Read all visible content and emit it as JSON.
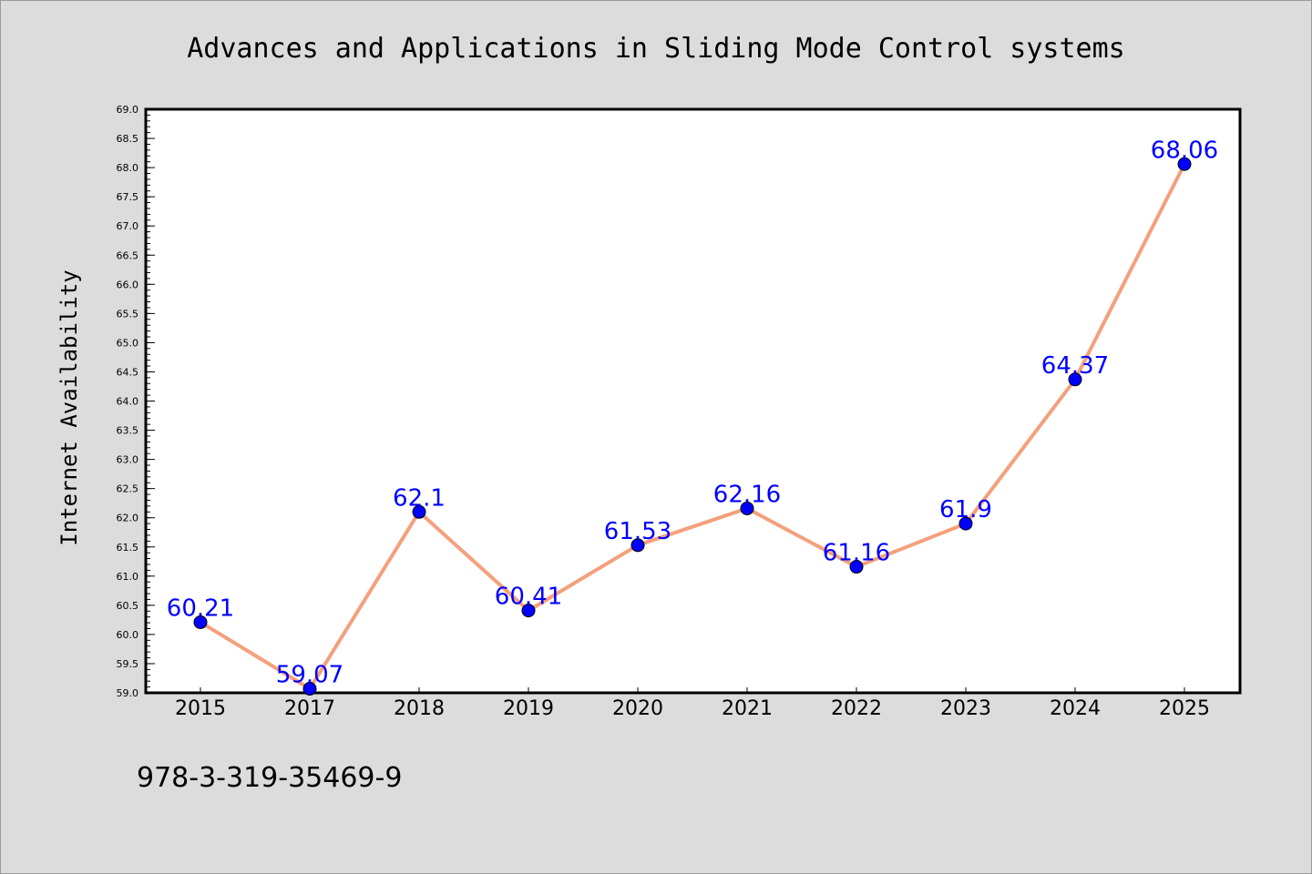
{
  "footer_text": "978-3-319-35469-9",
  "colors": {
    "background": "#dcdcdc",
    "plot_background": "#ffffff",
    "line": "#f4a07c",
    "marker": "#0000ff",
    "data_label": "#0000ff"
  },
  "chart_data": {
    "type": "line",
    "title": "Advances and Applications in Sliding Mode Control systems",
    "xlabel": "",
    "ylabel": "Internet Availability",
    "categories": [
      "2015",
      "2017",
      "2018",
      "2019",
      "2020",
      "2021",
      "2022",
      "2023",
      "2024",
      "2025"
    ],
    "series": [
      {
        "values": [
          60.21,
          59.07,
          62.1,
          60.41,
          61.53,
          62.16,
          61.16,
          61.9,
          64.37,
          68.06
        ],
        "labels": [
          "60.21",
          "59.07",
          "62.1",
          "60.41",
          "61.53",
          "62.16",
          "61.16",
          "61.9",
          "64.37",
          "68.06"
        ]
      }
    ],
    "ylim": [
      59.0,
      69.0
    ],
    "yticks": [
      "59.0",
      "59.5",
      "60.0",
      "60.5",
      "61.0",
      "61.5",
      "62.0",
      "62.5",
      "63.0",
      "63.5",
      "64.0",
      "64.5",
      "65.0",
      "65.5",
      "66.0",
      "66.5",
      "67.0",
      "67.5",
      "68.0",
      "68.5",
      "69.0"
    ],
    "grid": false,
    "legend": "none",
    "marker": "circle"
  }
}
